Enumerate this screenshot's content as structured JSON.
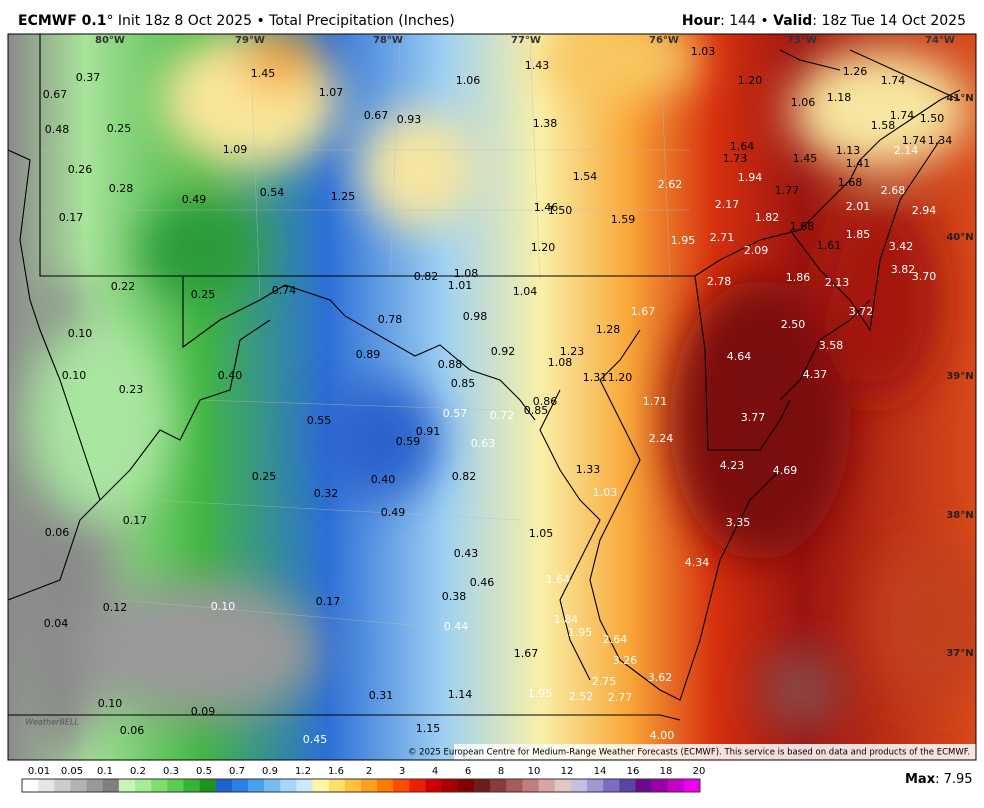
{
  "header": {
    "model": "ECMWF 0.1",
    "degree": "°",
    "title": "Init 18z 8 Oct 2025 • Total Precipitation (Inches)",
    "hour_label": "Hour",
    "hour": ": 144 •",
    "valid_label": "Valid",
    "valid": ": 18z Tue 14 Oct 2025"
  },
  "lon_labels": [
    "80°W",
    "79°W",
    "78°W",
    "77°W",
    "76°W",
    "75°W",
    "74°W"
  ],
  "lat_labels": [
    "41°N",
    "40°N",
    "39°N",
    "38°N",
    "37°N"
  ],
  "point_labels": [
    "0.37",
    "0.67",
    "0.48",
    "0.25",
    "0.26",
    "0.28",
    "0.17",
    "0.49",
    "0.54",
    "1.45",
    "1.09",
    "1.07",
    "0.67",
    "0.93",
    "1.25",
    "1.06",
    "1.43",
    "1.38",
    "1.03",
    "1.20",
    "1.26",
    "1.74",
    "1.06",
    "1.18",
    "1.74",
    "1.50",
    "1.58",
    "1.74",
    "1.34",
    "1.13",
    "2.14",
    "1.64",
    "1.73",
    "1.45",
    "1.41",
    "1.94",
    "1.54",
    "2.62",
    "1.77",
    "1.68",
    "2.68",
    "1.46",
    "1.50",
    "1.59",
    "2.17",
    "1.82",
    "2.01",
    "2.94",
    "1.68",
    "1.85",
    "1.95",
    "2.71",
    "1.20",
    "2.09",
    "1.61",
    "3.42",
    "3.82",
    "3.70",
    "0.82",
    "1.08",
    "1.01",
    "1.04",
    "0.22",
    "0.25",
    "0.74",
    "2.78",
    "1.86",
    "2.13",
    "0.78",
    "0.98",
    "1.28",
    "1.67",
    "3.72",
    "2.50",
    "0.10",
    "0.89",
    "0.92",
    "1.23",
    "3.58",
    "4.64",
    "0.88",
    "1.08",
    "0.10",
    "0.40",
    "0.85",
    "1.31",
    "1.20",
    "4.37",
    "0.23",
    "0.86",
    "0.85",
    "0.57",
    "0.72",
    "1.71",
    "3.77",
    "0.55",
    "0.91",
    "0.59",
    "0.63",
    "2.24",
    "1.33",
    "4.23",
    "4.69",
    "0.25",
    "0.40",
    "0.82",
    "0.32",
    "1.03",
    "0.17",
    "0.49",
    "3.35",
    "0.06",
    "1.05",
    "0.43",
    "4.34",
    "0.46",
    "1.64",
    "0.38",
    "0.12",
    "0.10",
    "0.17",
    "1.84",
    "0.04",
    "0.44",
    "1.95",
    "2.64",
    "1.67",
    "3.26",
    "3.62",
    "2.75",
    "1.14",
    "1.95",
    "2.52",
    "2.77",
    "0.31",
    "0.10",
    "0.09",
    "0.06",
    "1.15",
    "4.00",
    "0.45"
  ],
  "logo": "WeatherBELL",
  "copyright": "© 2025 European Centre for Medium-Range Weather Forecasts (ECMWF). This service is based on data and products of the ECMWF.",
  "colorbar": {
    "ticks": [
      "0.01",
      "0.05",
      "0.1",
      "0.2",
      "0.3",
      "0.5",
      "0.7",
      "0.9",
      "1.2",
      "1.6",
      "2",
      "3",
      "4",
      "6",
      "8",
      "10",
      "12",
      "14",
      "16",
      "18",
      "20"
    ]
  },
  "max": {
    "label": "Max",
    "value": ": 7.95"
  }
}
